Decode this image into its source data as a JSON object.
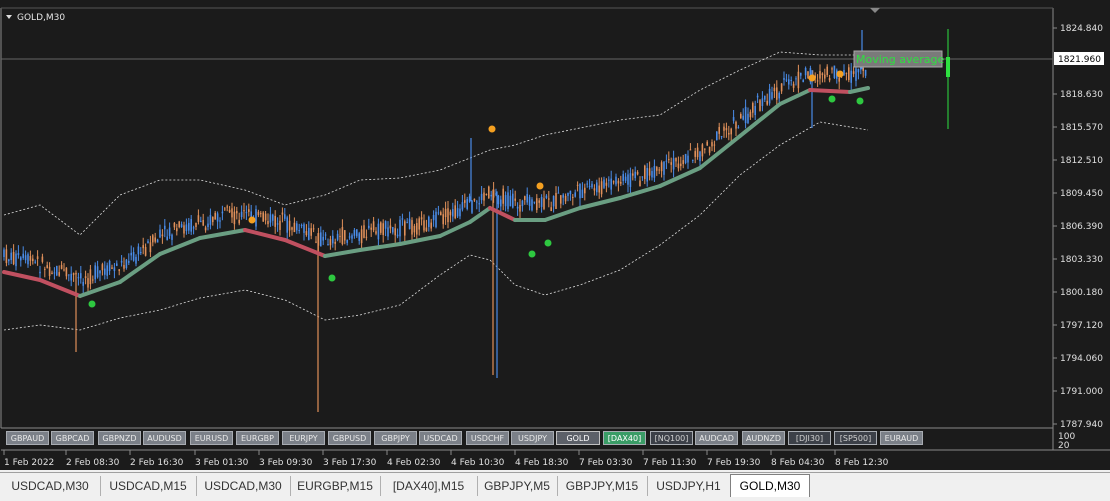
{
  "chart": {
    "title": "GOLD,M30",
    "current_price_label": "1821.960",
    "indicator_label": "Moving average",
    "price_axis": [
      "1824.840",
      "1821.960",
      "1818.630",
      "1815.570",
      "1812.510",
      "1809.450",
      "1806.390",
      "1803.330",
      "1800.180",
      "1797.120",
      "1794.060",
      "1791.000",
      "1787.940"
    ],
    "sub_axis": [
      "100",
      "20"
    ],
    "time_axis": [
      "1 Feb 2022",
      "2 Feb 08:30",
      "2 Feb 16:30",
      "3 Feb 01:30",
      "3 Feb 09:30",
      "3 Feb 17:30",
      "4 Feb 02:30",
      "4 Feb 10:30",
      "4 Feb 18:30",
      "7 Feb 03:30",
      "7 Feb 11:30",
      "7 Feb 19:30",
      "8 Feb 04:30",
      "8 Feb 12:30"
    ]
  },
  "symbol_buttons": [
    "GBPAUD",
    "GBPCAD",
    "GBPNZD",
    "AUDUSD",
    "EURUSD",
    "EURGBP",
    "EURJPY",
    "GBPUSD",
    "GBPJPY",
    "USDCAD",
    "USDCHF",
    "USDJPY",
    "GOLD",
    "[DAX40]",
    "[NQ100]",
    "AUDCAD",
    "AUDNZD",
    "[DJI30]",
    "[SP500]",
    "EURAUD"
  ],
  "tabs": [
    "USDCAD,M30",
    "USDCAD,M15",
    "USDCAD,M30",
    "EURGBP,M15",
    "[DAX40],M15",
    "GBPJPY,M5",
    "GBPJPY,M15",
    "USDJPY,H1",
    "GOLD,M30"
  ],
  "colors": {
    "background": "#1b1b1b",
    "bull": "#4a8ce8",
    "bear": "#e0905a",
    "ma_up": "#6a9e82",
    "ma_down": "#c05060",
    "dot_orange": "#f5a020",
    "dot_green": "#2ec840"
  }
}
